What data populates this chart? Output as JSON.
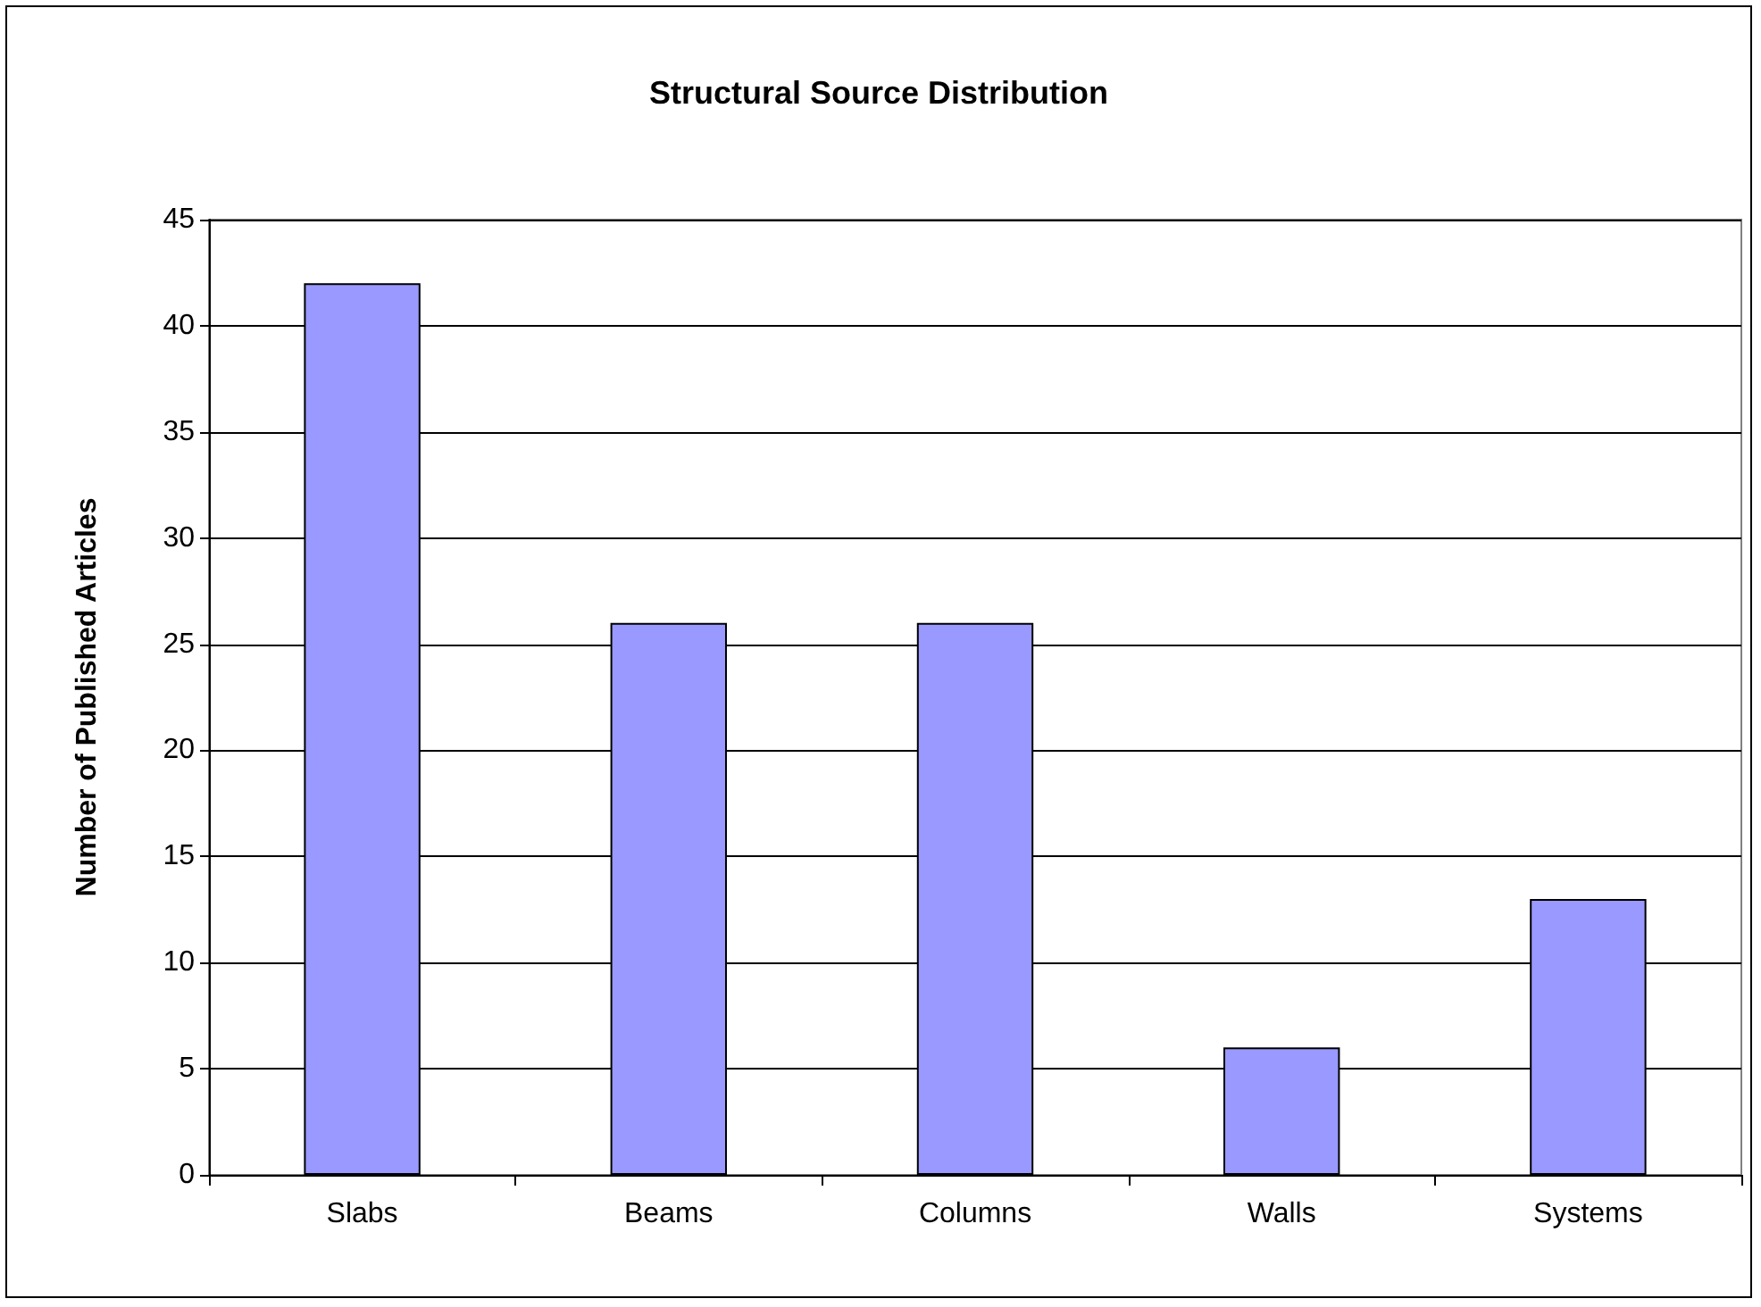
{
  "chart_data": {
    "type": "bar",
    "title": "Structural Source Distribution",
    "ylabel": "Number of Published Articles",
    "categories": [
      "Slabs",
      "Beams",
      "Columns",
      "Walls",
      "Systems"
    ],
    "values": [
      42,
      26,
      26,
      6,
      13
    ],
    "color": "#9999ff",
    "ylim": [
      0,
      45
    ],
    "yticks": [
      0,
      5,
      10,
      15,
      20,
      25,
      30,
      35,
      40,
      45
    ],
    "grid": "y"
  }
}
